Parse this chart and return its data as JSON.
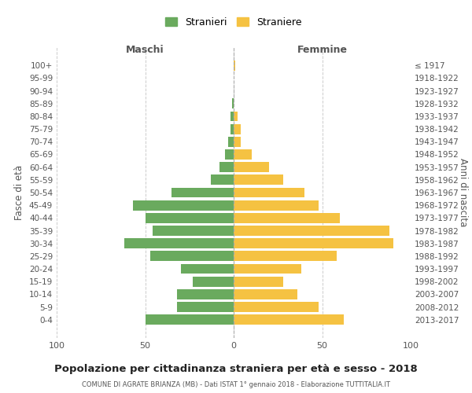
{
  "age_groups": [
    "0-4",
    "5-9",
    "10-14",
    "15-19",
    "20-24",
    "25-29",
    "30-34",
    "35-39",
    "40-44",
    "45-49",
    "50-54",
    "55-59",
    "60-64",
    "65-69",
    "70-74",
    "75-79",
    "80-84",
    "85-89",
    "90-94",
    "95-99",
    "100+"
  ],
  "birth_years": [
    "2013-2017",
    "2008-2012",
    "2003-2007",
    "1998-2002",
    "1993-1997",
    "1988-1992",
    "1983-1987",
    "1978-1982",
    "1973-1977",
    "1968-1972",
    "1963-1967",
    "1958-1962",
    "1953-1957",
    "1948-1952",
    "1943-1947",
    "1938-1942",
    "1933-1937",
    "1928-1932",
    "1923-1927",
    "1918-1922",
    "≤ 1917"
  ],
  "maschi": [
    50,
    32,
    32,
    23,
    30,
    47,
    62,
    46,
    50,
    57,
    35,
    13,
    8,
    5,
    3,
    2,
    2,
    1,
    0,
    0,
    0
  ],
  "femmine": [
    62,
    48,
    36,
    28,
    38,
    58,
    90,
    88,
    60,
    48,
    40,
    28,
    20,
    10,
    4,
    4,
    2,
    0,
    0,
    0,
    1
  ],
  "maschi_color": "#6aaa5e",
  "femmine_color": "#f5c242",
  "background_color": "#ffffff",
  "grid_color": "#cccccc",
  "title": "Popolazione per cittadinanza straniera per età e sesso - 2018",
  "subtitle": "COMUNE DI AGRATE BRIANZA (MB) - Dati ISTAT 1° gennaio 2018 - Elaborazione TUTTITALIA.IT",
  "xlabel_left": "Maschi",
  "xlabel_right": "Femmine",
  "ylabel_left": "Fasce di età",
  "ylabel_right": "Anni di nascita",
  "legend_maschi": "Stranieri",
  "legend_femmine": "Straniere",
  "xlim": 100,
  "bar_height": 0.8
}
